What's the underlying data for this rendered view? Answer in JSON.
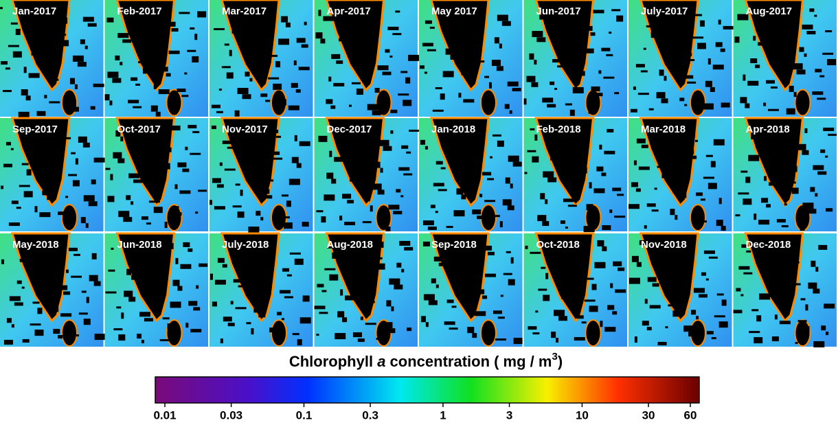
{
  "panels": [
    "Jan-2017",
    "Feb-2017",
    "Mar-2017",
    "Apr-2017",
    "May 2017",
    "Jun-2017",
    "July-2017",
    "Aug-2017",
    "Sep-2017",
    "Oct-2017",
    "Nov-2017",
    "Dec-2017",
    "Jan-2018",
    "Feb-2018",
    "Mar-2018",
    "Apr-2018",
    "May-2018",
    "Jun-2018",
    "July-2018",
    "Aug-2018",
    "Sep-2018",
    "Oct-2018",
    "Nov-2018",
    "Dec-2018"
  ],
  "colorbar": {
    "title": [
      "Chlorophyll ",
      "a",
      " concentration   ( mg / m",
      "3",
      ")"
    ],
    "log_scale": true,
    "lim": [
      0.01,
      60
    ],
    "ticks": [
      0.01,
      0.03,
      0.1,
      0.3,
      1,
      3,
      10,
      30,
      60
    ]
  }
}
